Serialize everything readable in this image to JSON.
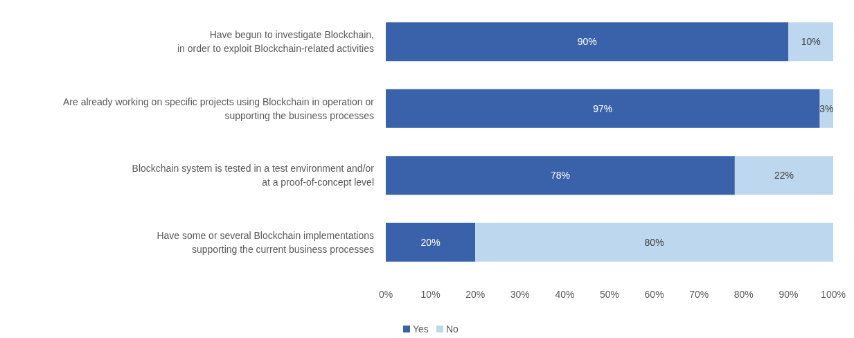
{
  "chart_data": {
    "type": "bar",
    "orientation": "horizontal",
    "stacked": true,
    "categories": [
      "Have begun to investigate Blockchain,\nin order to exploit Blockchain-related activities",
      "Are already working on specific projects using Blockchain in operation or\nsupporting the business processes",
      "Blockchain system is tested in a test environment and/or\nat a proof-of-concept level",
      "Have some or several Blockchain implementations\nsupporting the current business processes"
    ],
    "series": [
      {
        "name": "Yes",
        "color": "#3a62aa",
        "values": [
          90,
          97,
          78,
          20
        ],
        "value_labels": [
          "90%",
          "97%",
          "78%",
          "20%"
        ]
      },
      {
        "name": "No",
        "color": "#bdd7ee",
        "values": [
          10,
          3,
          22,
          80
        ],
        "value_labels": [
          "10%",
          "3%",
          "22%",
          "80%"
        ]
      }
    ],
    "xlim": [
      0,
      100
    ],
    "xticks": [
      {
        "value": 0,
        "label": "0%"
      },
      {
        "value": 10,
        "label": "10%"
      },
      {
        "value": 20,
        "label": "20%"
      },
      {
        "value": 30,
        "label": "30%"
      },
      {
        "value": 40,
        "label": "40%"
      },
      {
        "value": 50,
        "label": "50%"
      },
      {
        "value": 60,
        "label": "60%"
      },
      {
        "value": 70,
        "label": "70%"
      },
      {
        "value": 80,
        "label": "80%"
      },
      {
        "value": 90,
        "label": "90%"
      },
      {
        "value": 100,
        "label": "100%"
      }
    ],
    "grid": false,
    "legend": "bottom"
  }
}
